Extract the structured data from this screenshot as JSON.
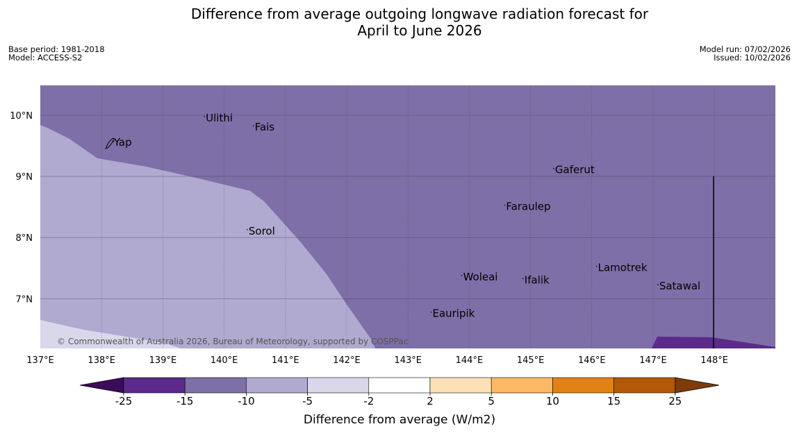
{
  "title": {
    "line1": "Difference from average outgoing longwave radiation forecast for",
    "line2": "April to June 2026"
  },
  "meta": {
    "base_period": "Base period: 1981-2018",
    "model": "Model: ACCESS-S2",
    "model_run": "Model run: 07/02/2026",
    "issued": "Issued: 10/02/2026"
  },
  "map": {
    "lon_range": [
      137,
      149
    ],
    "lat_range": [
      6.2,
      10.5
    ],
    "lon_ticks": [
      "137°E",
      "138°E",
      "139°E",
      "140°E",
      "141°E",
      "142°E",
      "143°E",
      "144°E",
      "145°E",
      "146°E",
      "147°E",
      "148°E"
    ],
    "lat_ticks": [
      "10°N",
      "9°N",
      "8°N",
      "7°N"
    ],
    "places": [
      {
        "name": "Yap",
        "lon": 138.2,
        "lat": 9.5
      },
      {
        "name": "Ulithi",
        "lon": 139.7,
        "lat": 9.9
      },
      {
        "name": "Fais",
        "lon": 140.5,
        "lat": 9.75
      },
      {
        "name": "Gaferut",
        "lon": 145.4,
        "lat": 9.05
      },
      {
        "name": "Faraulep",
        "lon": 144.6,
        "lat": 8.45
      },
      {
        "name": "Sorol",
        "lon": 140.4,
        "lat": 8.05
      },
      {
        "name": "Woleai",
        "lon": 143.9,
        "lat": 7.3
      },
      {
        "name": "Ifalik",
        "lon": 144.9,
        "lat": 7.25
      },
      {
        "name": "Lamotrek",
        "lon": 146.1,
        "lat": 7.45
      },
      {
        "name": "Satawal",
        "lon": 147.1,
        "lat": 7.15
      },
      {
        "name": "Eauripik",
        "lon": 143.4,
        "lat": 6.7
      }
    ],
    "copyright": "© Commonwealth of Australia 2026, Bureau of Meteorology, supported by COSPPac",
    "fills": {
      "background_band": "-15 to -10",
      "west_band": "-10 to -5",
      "southwest_band": "-5 to -2",
      "southeast_band": "-25 to -15"
    }
  },
  "legend": {
    "title": "Difference from average (W/m2)",
    "ticks": [
      "-25",
      "-15",
      "-10",
      "-5",
      "-2",
      "2",
      "5",
      "10",
      "15",
      "25"
    ],
    "colors": [
      "#3d0a5c",
      "#5b2a8a",
      "#7e6fa8",
      "#b0a9d0",
      "#d8d8ea",
      "#ffffff",
      "#fee0b6",
      "#fdb863",
      "#e08214",
      "#b35806",
      "#7f3b08"
    ]
  },
  "colors": {
    "band_m15_m10": "#7e6fa8",
    "band_m10_m5": "#b0a9d0",
    "band_m5_m2": "#d8d8ea",
    "band_m25_m15": "#5b2a8a"
  }
}
